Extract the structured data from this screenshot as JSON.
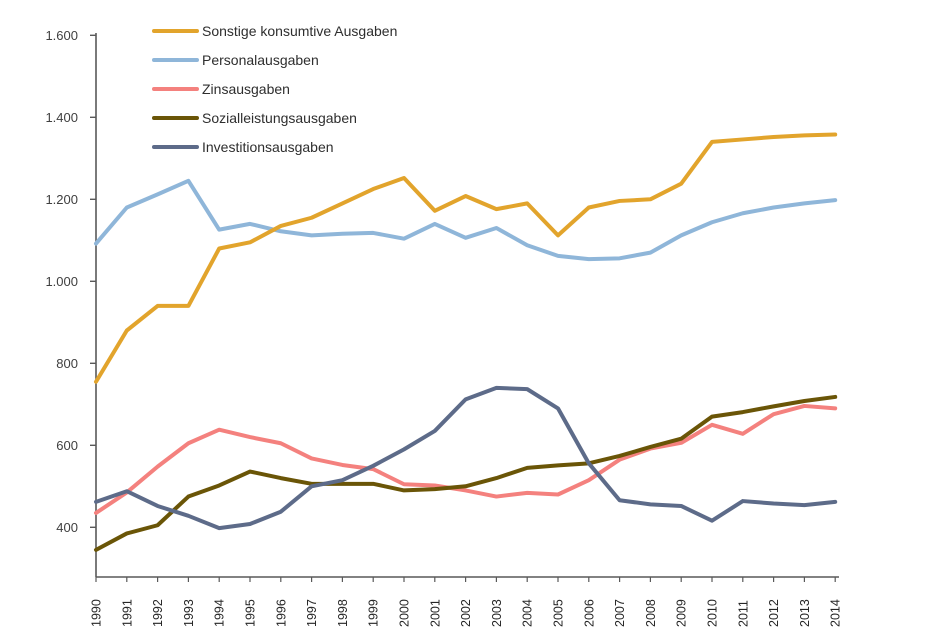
{
  "page": {
    "background": "#ffffff"
  },
  "chart_data": {
    "type": "line",
    "title": "",
    "xlabel": "",
    "ylabel": "",
    "x": [
      "1990",
      "1991",
      "1992",
      "1993",
      "1994",
      "1995",
      "1996",
      "1997",
      "1998",
      "1999",
      "2000",
      "2001",
      "2002",
      "2003",
      "2004",
      "2005",
      "2006",
      "2007",
      "2008",
      "2009",
      "2010",
      "2011",
      "2012",
      "2013",
      "2014"
    ],
    "series": [
      {
        "name": "Sonstige konsumtive Ausgaben",
        "color": "#E2A42C",
        "values": [
          755,
          880,
          940,
          940,
          1080,
          1095,
          1135,
          1155,
          1190,
          1225,
          1252,
          1172,
          1208,
          1176,
          1190,
          1112,
          1180,
          1196,
          1200,
          1238,
          1340,
          1346,
          1352,
          1356,
          1358
        ]
      },
      {
        "name": "Personalausgaben",
        "color": "#8FB6D9",
        "values": [
          1092,
          1180,
          1212,
          1245,
          1126,
          1140,
          1122,
          1112,
          1116,
          1118,
          1104,
          1140,
          1106,
          1130,
          1088,
          1062,
          1054,
          1056,
          1070,
          1112,
          1144,
          1166,
          1180,
          1190,
          1198
        ]
      },
      {
        "name": "Zinsausgaben",
        "color": "#F4817E",
        "values": [
          435,
          485,
          548,
          605,
          638,
          620,
          605,
          568,
          552,
          542,
          505,
          502,
          490,
          475,
          484,
          480,
          515,
          565,
          592,
          606,
          650,
          628,
          676,
          696,
          690
        ]
      },
      {
        "name": "Sozialleistungsausgaben",
        "color": "#6A5507",
        "values": [
          345,
          385,
          405,
          475,
          502,
          536,
          520,
          506,
          506,
          506,
          490,
          493,
          500,
          520,
          545,
          551,
          556,
          574,
          596,
          616,
          670,
          681,
          695,
          708,
          718
        ]
      },
      {
        "name": "Investitionsausgaben",
        "color": "#5D6B89",
        "values": [
          462,
          488,
          452,
          428,
          398,
          408,
          438,
          500,
          515,
          550,
          590,
          635,
          712,
          740,
          737,
          690,
          556,
          466,
          456,
          452,
          416,
          464,
          458,
          454,
          462
        ]
      }
    ],
    "yticks": {
      "values": [
        400,
        600,
        800,
        1000,
        1200,
        1400,
        1600
      ],
      "labels": [
        "400",
        "600",
        "800",
        "1.000",
        "1.200",
        "1.400",
        "1.600"
      ]
    },
    "ylim": [
      280,
      1610
    ],
    "grid": false,
    "legend_position": "top-left",
    "style": {
      "axis_color": "#595959",
      "ytick_label_color": "#3f3f3f",
      "xtick_label_color": "#262626",
      "line_width": 4
    }
  }
}
